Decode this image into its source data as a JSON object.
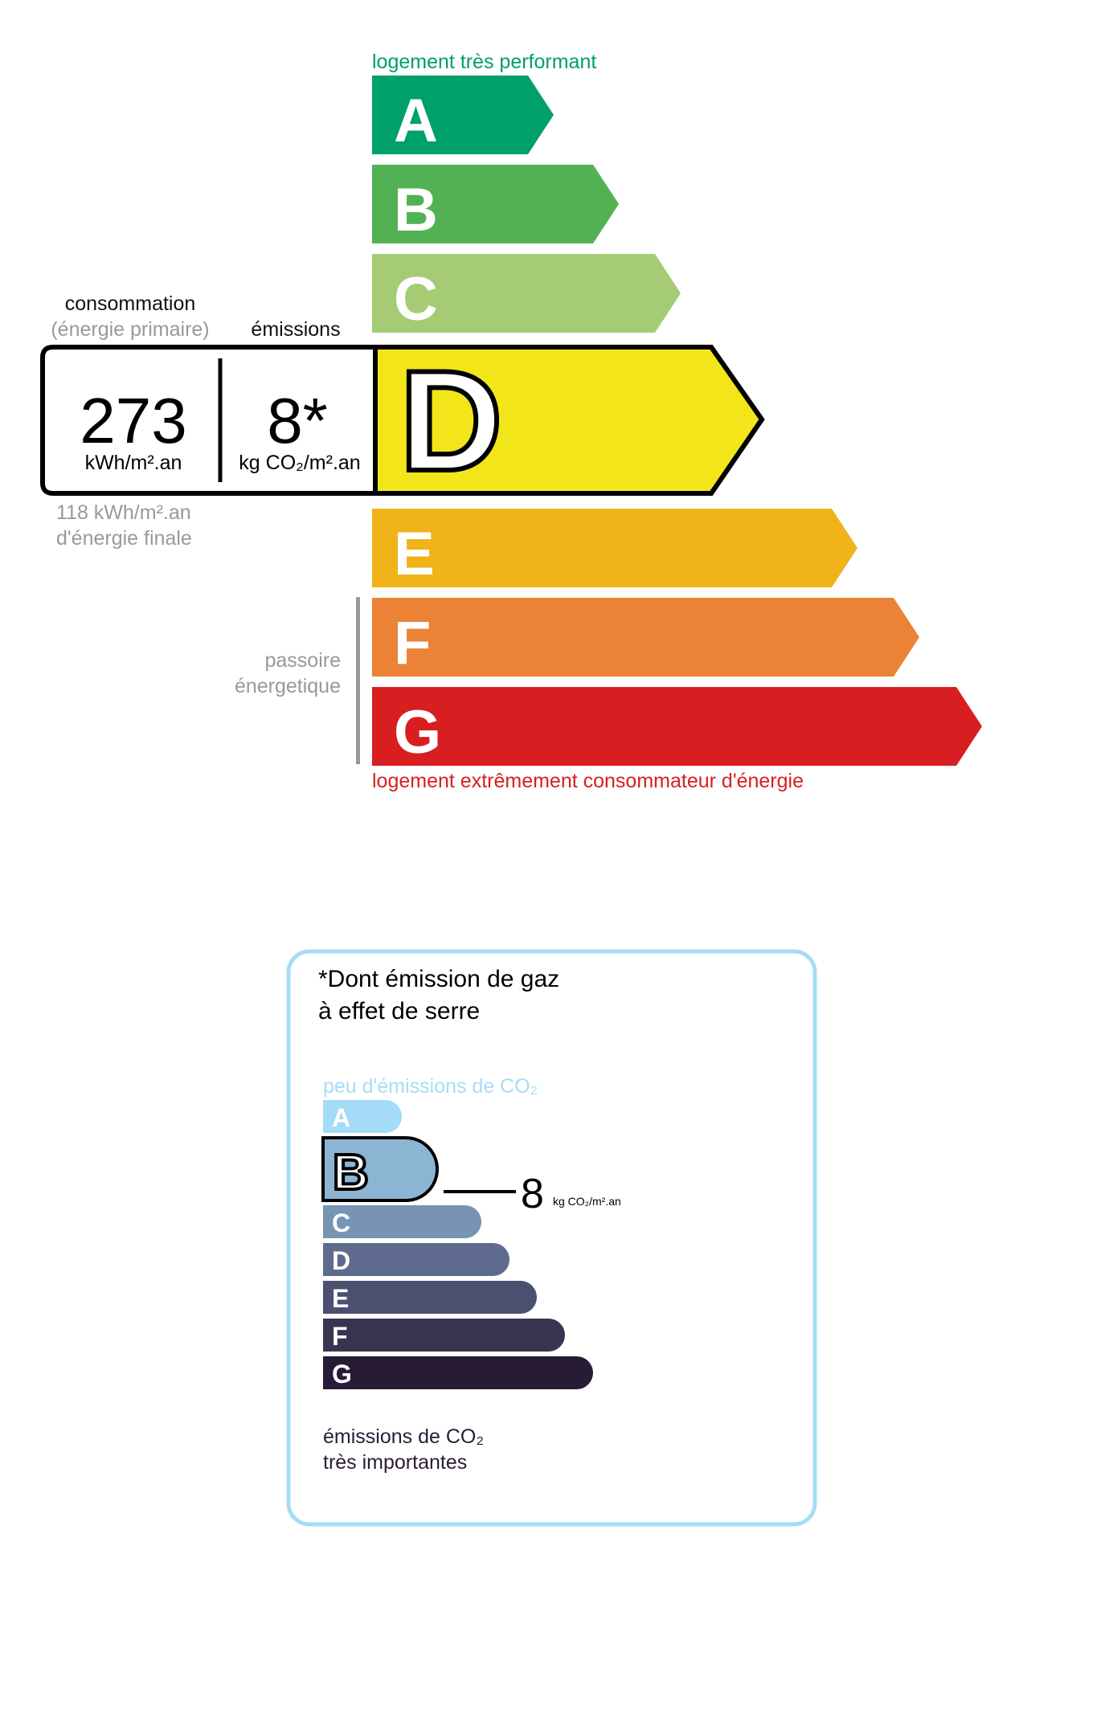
{
  "dpe": {
    "top_label": "logement très performant",
    "bottom_label": "logement extrêmement consommateur d'énergie",
    "top_label_color": "#009e6b",
    "bottom_label_color": "#d81e20",
    "classes": [
      {
        "letter": "A",
        "color": "#00a06b"
      },
      {
        "letter": "B",
        "color": "#52b153"
      },
      {
        "letter": "C",
        "color": "#a5cc74"
      },
      {
        "letter": "D",
        "color": "#f2e61b"
      },
      {
        "letter": "E",
        "color": "#f0b41a"
      },
      {
        "letter": "F",
        "color": "#eb8235"
      },
      {
        "letter": "G",
        "color": "#d81e20"
      }
    ],
    "current_class": "D",
    "consumption_label": "consommation",
    "consumption_sublabel": "(énergie primaire)",
    "emissions_label": "émissions",
    "consumption_value": "273",
    "consumption_unit": "kWh/m².an",
    "emissions_value": "8*",
    "emissions_unit": "kg CO₂/m².an",
    "final_energy_line1": "118 kWh/m².an",
    "final_energy_line2": "d'énergie finale",
    "passoire_line1": "passoire",
    "passoire_line2": "énergetique"
  },
  "ges": {
    "title_line1": "*Dont émission de gaz",
    "title_line2": "à effet de serre",
    "top_label": "peu d'émissions de CO₂",
    "bottom_label_line1": "émissions de CO₂",
    "bottom_label_line2": "très importantes",
    "border_color": "#a6dcf7",
    "classes": [
      {
        "letter": "A",
        "color": "#a3dbf8"
      },
      {
        "letter": "B",
        "color": "#8cb4d3"
      },
      {
        "letter": "C",
        "color": "#7794b4"
      },
      {
        "letter": "D",
        "color": "#5e6b8f"
      },
      {
        "letter": "E",
        "color": "#4b5070"
      },
      {
        "letter": "F",
        "color": "#393551"
      },
      {
        "letter": "G",
        "color": "#281b35"
      }
    ],
    "current_class": "B",
    "value": "8",
    "unit": "kg CO₂/m².an"
  }
}
